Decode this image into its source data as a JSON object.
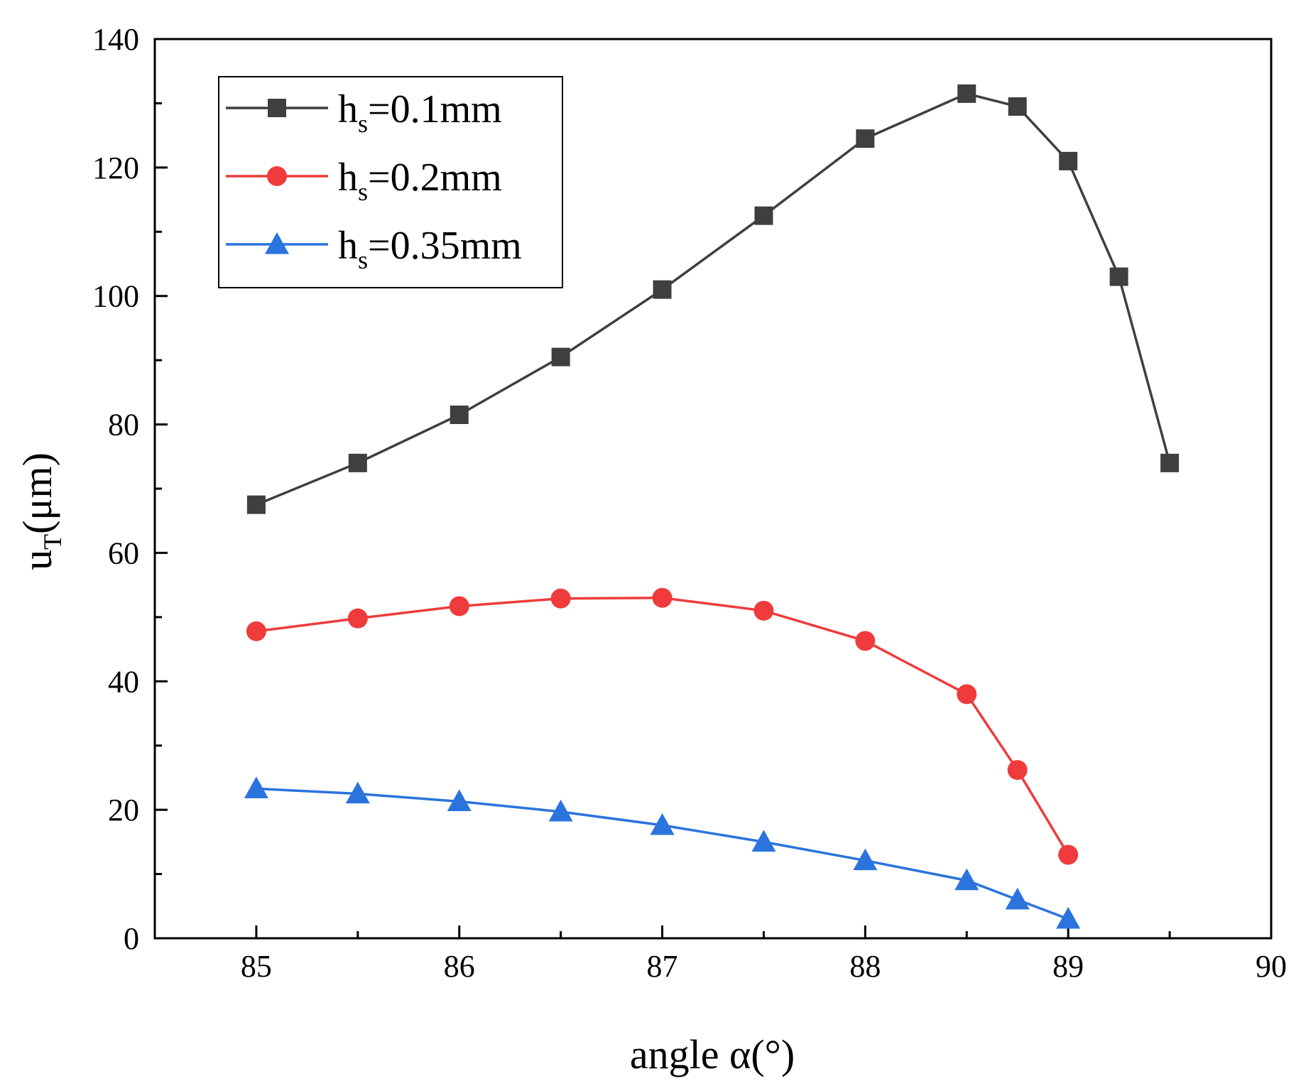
{
  "chart_data": {
    "type": "line",
    "xlabel": "angle α(°)",
    "ylabel_main": "u",
    "ylabel_sub": "T",
    "ylabel_unit": "(μm)",
    "xlim": [
      84.5,
      90
    ],
    "ylim": [
      0,
      140
    ],
    "xticks": [
      85,
      86,
      87,
      88,
      89,
      90
    ],
    "yticks": [
      0,
      20,
      40,
      60,
      80,
      100,
      120,
      140
    ],
    "grid": false,
    "legend_position": "top-left",
    "series": [
      {
        "name": "hs=0.1mm",
        "label_main": "h",
        "label_sub": "s",
        "label_rest": "=0.1mm",
        "color": "#3f3f3f",
        "marker": "square",
        "x": [
          85,
          85.5,
          86,
          86.5,
          87,
          87.5,
          88,
          88.5,
          88.75,
          89,
          89.25,
          89.5
        ],
        "y": [
          67.5,
          74,
          81.5,
          90.5,
          101,
          112.5,
          124.5,
          131.5,
          129.5,
          121,
          103,
          74
        ]
      },
      {
        "name": "hs=0.2mm",
        "label_main": "h",
        "label_sub": "s",
        "label_rest": "=0.2mm",
        "color": "#ef3b3b",
        "marker": "circle",
        "x": [
          85,
          85.5,
          86,
          86.5,
          87,
          87.5,
          88,
          88.5,
          88.75,
          89
        ],
        "y": [
          47.8,
          49.8,
          51.7,
          52.9,
          53,
          51,
          46.3,
          38,
          26.2,
          13
        ]
      },
      {
        "name": "hs=0.35mm",
        "label_main": "h",
        "label_sub": "s",
        "label_rest": "=0.35mm",
        "color": "#2b73dd",
        "marker": "triangle",
        "x": [
          85,
          85.5,
          86,
          86.5,
          87,
          87.5,
          88,
          88.5,
          88.75,
          89
        ],
        "y": [
          23.3,
          22.5,
          21.3,
          19.7,
          17.6,
          15,
          12.1,
          9,
          6,
          3
        ]
      }
    ]
  }
}
